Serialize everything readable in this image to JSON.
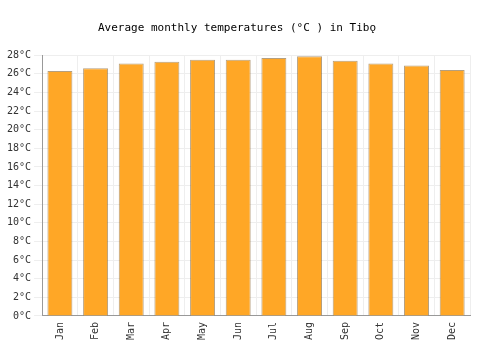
{
  "chart_data": {
    "type": "bar",
    "title": "Average monthly temperatures (°C ) in Tibǫ",
    "categories": [
      "Jan",
      "Feb",
      "Mar",
      "Apr",
      "May",
      "Jun",
      "Jul",
      "Aug",
      "Sep",
      "Oct",
      "Nov",
      "Dec"
    ],
    "values": [
      26.3,
      26.6,
      27.1,
      27.3,
      27.5,
      27.5,
      27.7,
      27.9,
      27.4,
      27.1,
      26.9,
      26.4
    ],
    "color": "#ffa726",
    "ylim": [
      0,
      28
    ],
    "yticks": [
      {
        "value": 0,
        "label": "0°C"
      },
      {
        "value": 2,
        "label": "2°C"
      },
      {
        "value": 4,
        "label": "4°C"
      },
      {
        "value": 6,
        "label": "6°C"
      },
      {
        "value": 8,
        "label": "8°C"
      },
      {
        "value": 10,
        "label": "10°C"
      },
      {
        "value": 12,
        "label": "12°C"
      },
      {
        "value": 14,
        "label": "14°C"
      },
      {
        "value": 16,
        "label": "16°C"
      },
      {
        "value": 18,
        "label": "18°C"
      },
      {
        "value": 20,
        "label": "20°C"
      },
      {
        "value": 22,
        "label": "22°C"
      },
      {
        "value": 24,
        "label": "24°C"
      },
      {
        "value": 26,
        "label": "26°C"
      },
      {
        "value": 28,
        "label": "28°C"
      }
    ],
    "grid": true
  }
}
